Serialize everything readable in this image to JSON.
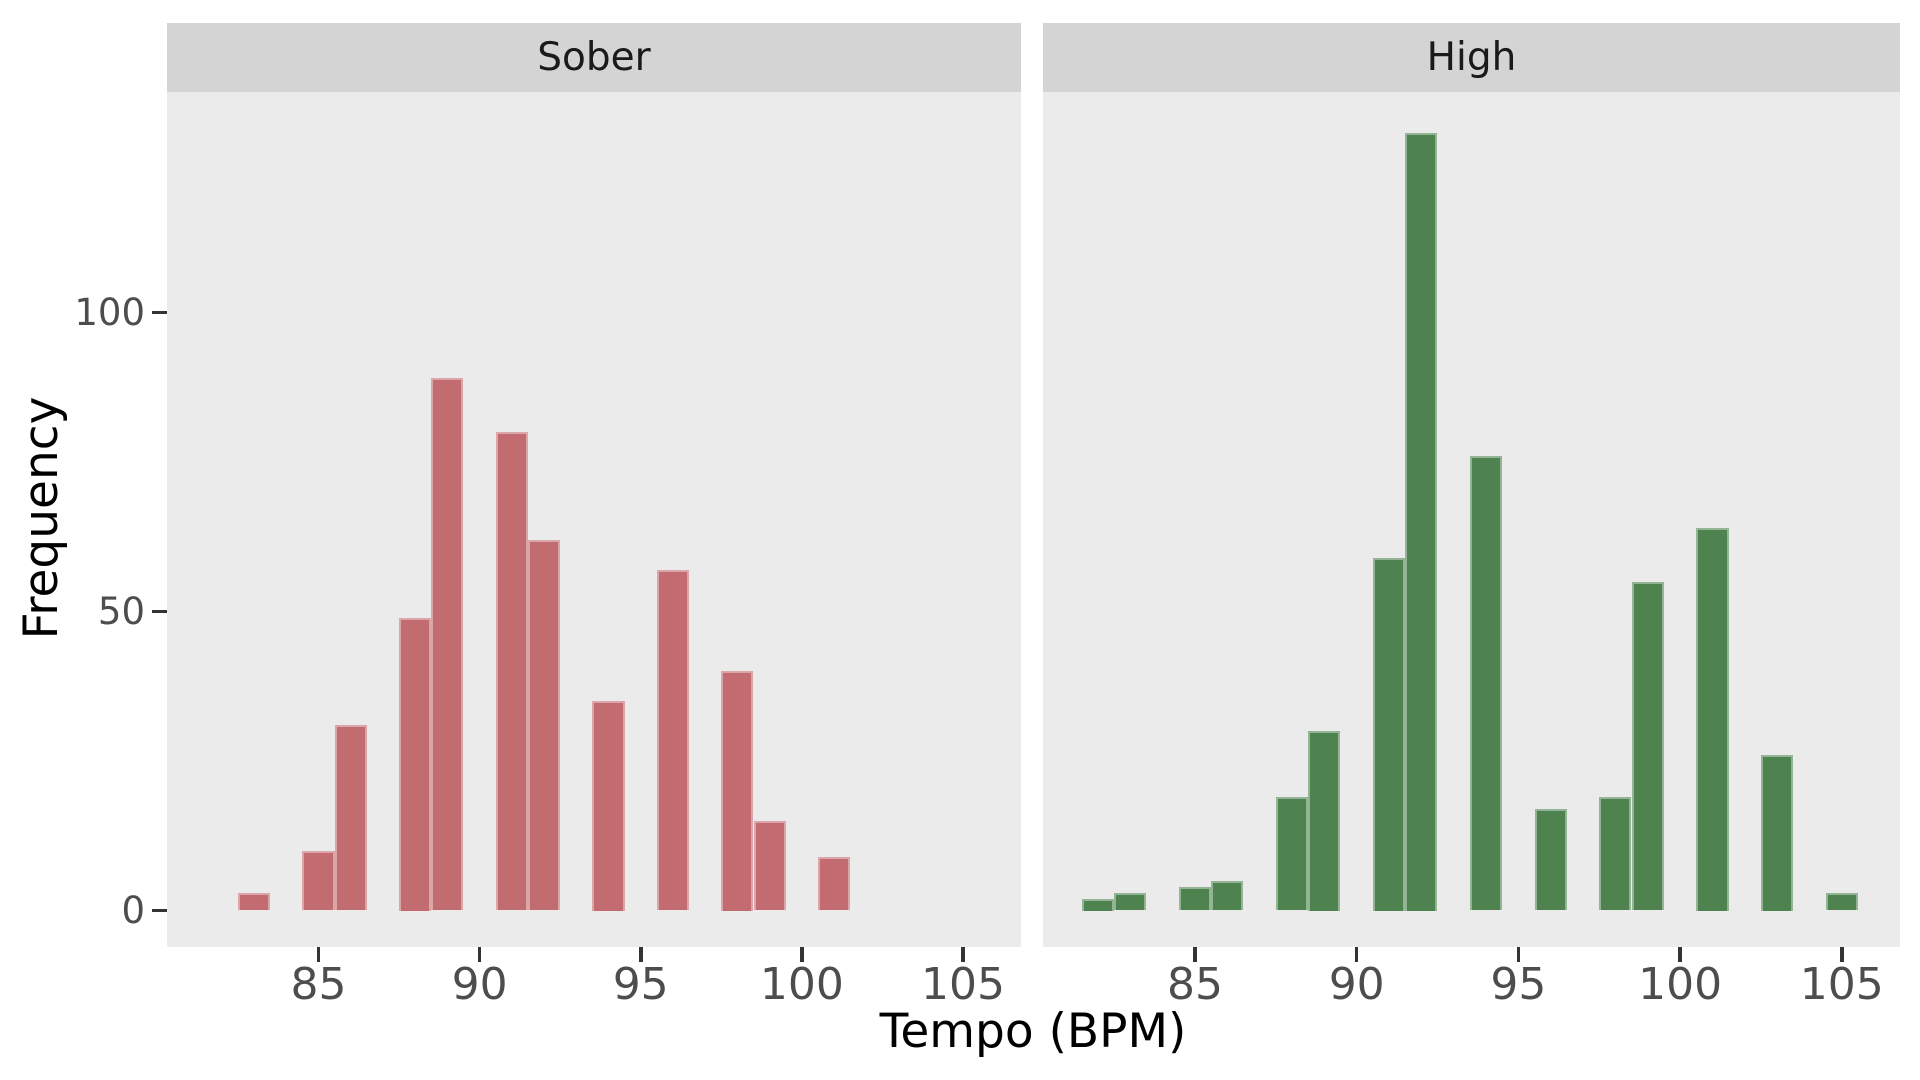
{
  "figure": {
    "background": "#ffffff",
    "panel_background": "#ebebeb",
    "strip_background": "#d4d4d4",
    "strip_text_color": "#1a1a1a",
    "tick_mark_color": "#333333",
    "tick_label_color": "#4d4d4d",
    "axis_title_color": "#000000"
  },
  "chart_data": {
    "type": "bar",
    "kind": "faceted-histogram",
    "title": "",
    "xlabel": "Tempo (BPM)",
    "ylabel": "Frequency",
    "grid": "off",
    "legend": "none",
    "x_ticks": [
      85,
      90,
      95,
      100,
      105
    ],
    "y_ticks": [
      0,
      50,
      100
    ],
    "x_domain": [
      80.3,
      106.8
    ],
    "y_domain": [
      -6.1,
      136.9
    ],
    "bin_width": 1,
    "facets": [
      {
        "label": "Sober",
        "color": "#c26b70",
        "bins": [
          83,
          85,
          86,
          88,
          89,
          91,
          92,
          94,
          96,
          98,
          99,
          101
        ],
        "counts": [
          3,
          10,
          31,
          49,
          89,
          80,
          62,
          35,
          57,
          40,
          15,
          9
        ]
      },
      {
        "label": "High",
        "color": "#4e8350",
        "bins": [
          82,
          83,
          85,
          86,
          88,
          89,
          91,
          92,
          94,
          96,
          98,
          99,
          101,
          103,
          105
        ],
        "counts": [
          2,
          3,
          4,
          5,
          19,
          30,
          59,
          130,
          76,
          17,
          19,
          55,
          64,
          26,
          3
        ]
      }
    ]
  }
}
